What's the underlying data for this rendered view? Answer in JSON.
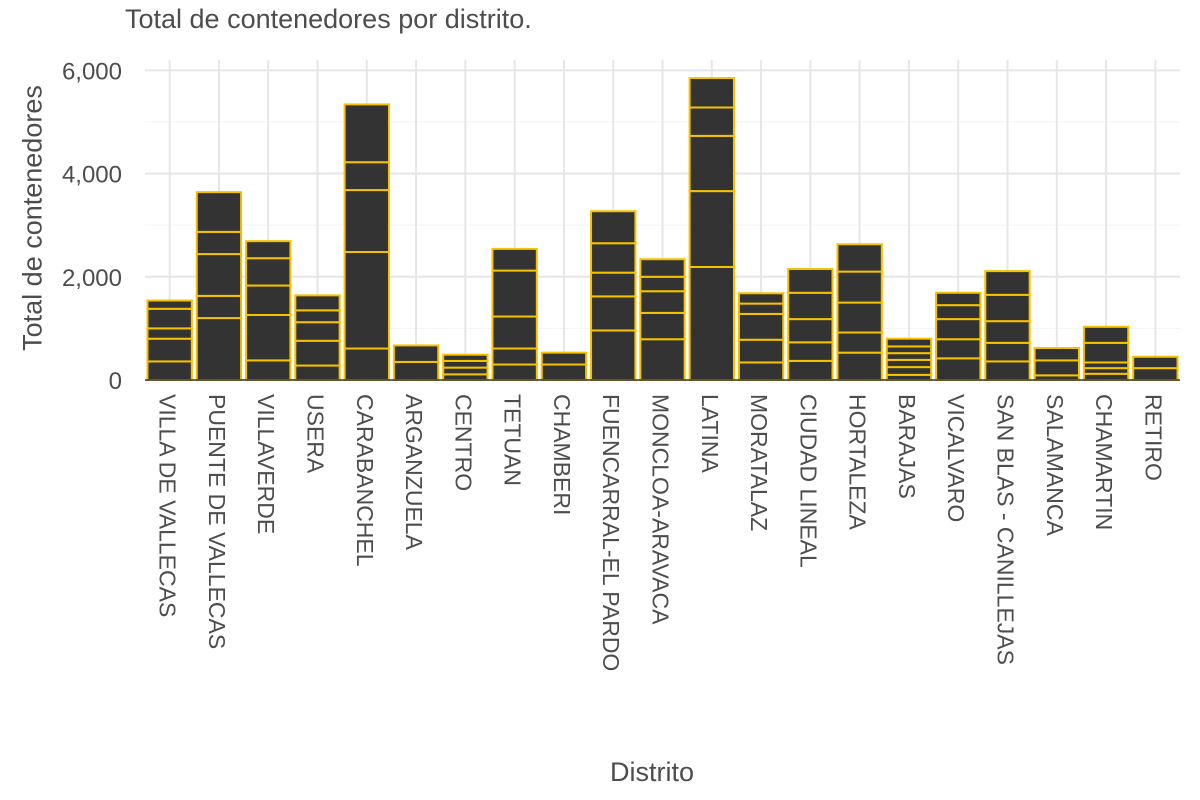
{
  "chart_data": {
    "type": "bar",
    "stacked": true,
    "title": "Total de contenedores por distrito.",
    "xlabel": "Distrito",
    "ylabel": "Total de contenedores",
    "ylim": [
      0,
      6200
    ],
    "yticks": [
      0,
      2000,
      4000,
      6000
    ],
    "ytick_labels": [
      "0",
      "2,000",
      "4,000",
      "6,000"
    ],
    "grid": true,
    "legend": "none",
    "bar_fill": "#333333",
    "bar_outline": "#f5c200",
    "categories": [
      "VILLA DE VALLECAS",
      "PUENTE DE VALLECAS",
      "VILLAVERDE",
      "USERA",
      "CARABANCHEL",
      "ARGANZUELA",
      "CENTRO",
      "TETUAN",
      "CHAMBERI",
      "FUENCARRAL-EL PARDO",
      "MONCLOA-ARAVACA",
      "LATINA",
      "MORATALAZ",
      "CIUDAD LINEAL",
      "HORTALEZA",
      "BARAJAS",
      "VICALVARO",
      "SAN BLAS - CANILLEJAS",
      "SALAMANCA",
      "CHAMARTIN",
      "RETIRO"
    ],
    "totals": [
      1540,
      3640,
      2690,
      1640,
      5340,
      670,
      490,
      2540,
      530,
      3270,
      2340,
      5850,
      1680,
      2150,
      2630,
      800,
      1690,
      2110,
      620,
      1030,
      450
    ],
    "segment_breaks": [
      [
        0,
        360,
        800,
        1000,
        1380,
        1540
      ],
      [
        0,
        1200,
        1630,
        2440,
        2870,
        3640
      ],
      [
        0,
        380,
        1260,
        1830,
        2360,
        2690
      ],
      [
        0,
        280,
        760,
        1120,
        1350,
        1640
      ],
      [
        0,
        610,
        2480,
        3680,
        4220,
        5340
      ],
      [
        0,
        350,
        670
      ],
      [
        0,
        110,
        240,
        370,
        490
      ],
      [
        0,
        300,
        610,
        1230,
        2120,
        2540
      ],
      [
        0,
        300,
        530
      ],
      [
        0,
        960,
        1620,
        2080,
        2650,
        3270
      ],
      [
        0,
        790,
        1300,
        1720,
        2000,
        2340
      ],
      [
        0,
        2190,
        3660,
        4730,
        5280,
        5850
      ],
      [
        0,
        340,
        780,
        1280,
        1480,
        1680
      ],
      [
        0,
        370,
        730,
        1180,
        1690,
        2150
      ],
      [
        0,
        530,
        920,
        1500,
        2100,
        2630
      ],
      [
        0,
        100,
        250,
        390,
        520,
        650,
        800
      ],
      [
        0,
        420,
        790,
        1180,
        1450,
        1690
      ],
      [
        0,
        360,
        720,
        1140,
        1650,
        2110
      ],
      [
        0,
        90,
        380,
        620
      ],
      [
        0,
        120,
        230,
        340,
        720,
        1030
      ],
      [
        0,
        230,
        450
      ]
    ]
  }
}
